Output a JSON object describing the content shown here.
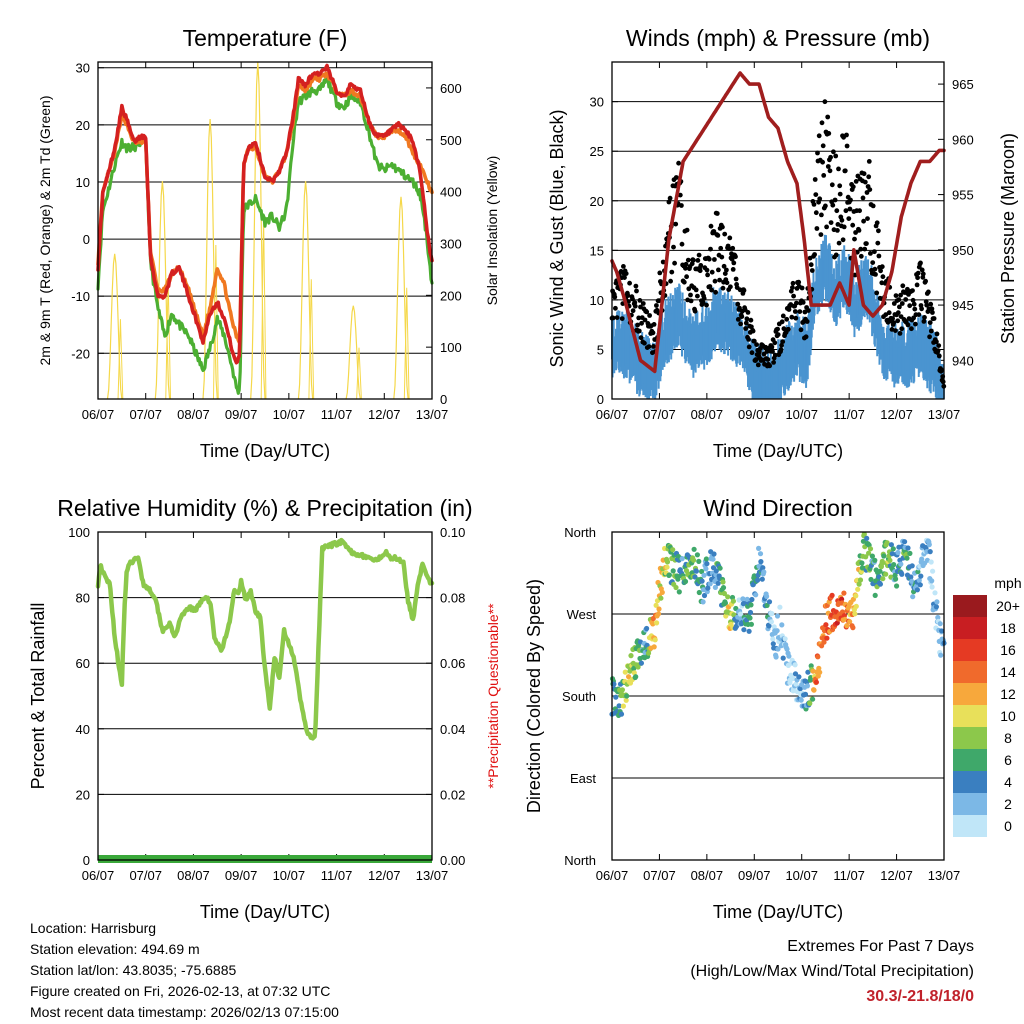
{
  "colors": {
    "temp_red": "#d42020",
    "temp_orange": "#f07820",
    "dew_green": "#4caf32",
    "solar_yellow": "#f5d84a",
    "gust_black": "#000000",
    "wind_blue": "#4a94d0",
    "pressure_maroon": "#a01e1e",
    "rh_green": "#8cc84b",
    "precip_green": "#3aa83a",
    "questionable_red": "#e01010",
    "extremes_red": "#c0222b"
  },
  "x_tick_labels": [
    "06/07",
    "07/07",
    "08/07",
    "09/07",
    "10/07",
    "11/07",
    "12/07",
    "13/07"
  ],
  "xlabel": "Time (Day/UTC)",
  "chart_data": [
    {
      "type": "line",
      "title": "Temperature (F)",
      "ylabel_left": "2m & 9m T (Red, Orange) & 2m Td (Green)",
      "ylabel_right": "Solar Insolation (Yellow)",
      "ylim_left": [
        -28,
        31
      ],
      "ylim_right": [
        0,
        650
      ],
      "yticks_left": [
        -20,
        -10,
        0,
        10,
        20,
        30
      ],
      "yticks_right": [
        0,
        100,
        200,
        300,
        400,
        500,
        600
      ],
      "gridlines_left": [
        -20,
        -10,
        0,
        10,
        20,
        30
      ],
      "series": [
        {
          "name": "2m T",
          "color": "#d42020",
          "x": [
            0,
            0.1,
            0.2,
            0.35,
            0.5,
            0.6,
            0.75,
            0.9,
            1.0,
            1.1,
            1.25,
            1.4,
            1.55,
            1.7,
            1.9,
            2.05,
            2.2,
            2.35,
            2.5,
            2.65,
            2.8,
            2.9,
            2.97,
            3.05,
            3.15,
            3.3,
            3.5,
            3.65,
            3.8,
            3.95,
            4.1,
            4.2,
            4.35,
            4.5,
            4.65,
            4.8,
            5.0,
            5.15,
            5.3,
            5.5,
            5.7,
            5.85,
            6.0,
            6.15,
            6.3,
            6.45,
            6.6,
            6.75,
            6.85,
            6.95,
            7.0
          ],
          "values": [
            -5,
            8,
            11,
            16,
            23,
            21,
            17,
            18,
            18,
            -3,
            -10,
            -10,
            -6,
            -5,
            -10,
            -14,
            -18,
            -13,
            -11,
            -14,
            -19,
            -22,
            -20,
            13,
            16,
            17,
            11,
            10,
            12,
            15,
            22,
            28,
            27,
            29,
            29,
            30,
            26,
            25,
            27,
            26,
            20,
            18,
            18,
            19,
            20,
            19,
            17,
            12,
            5,
            -2,
            -4
          ]
        },
        {
          "name": "9m T",
          "color": "#f07820",
          "x": [
            0,
            0.1,
            0.2,
            0.35,
            0.5,
            0.6,
            0.75,
            0.9,
            1.0,
            1.1,
            1.25,
            1.4,
            1.55,
            1.7,
            1.9,
            2.05,
            2.2,
            2.35,
            2.5,
            2.65,
            2.8,
            2.9,
            2.97,
            3.05,
            3.15,
            3.3,
            3.5,
            3.65,
            3.8,
            3.95,
            4.1,
            4.2,
            4.35,
            4.5,
            4.65,
            4.8,
            5.0,
            5.15,
            5.3,
            5.5,
            5.7,
            5.85,
            6.0,
            6.15,
            6.3,
            6.45,
            6.6,
            6.75,
            6.85,
            6.95,
            7.0
          ],
          "values": [
            -4,
            8,
            11,
            15,
            22,
            20,
            17,
            17,
            17,
            -2,
            -9,
            -9,
            -6,
            -5,
            -9,
            -13,
            -17,
            -12,
            -5,
            -8,
            -14,
            -17,
            -18,
            13,
            16,
            16,
            11,
            10,
            12,
            15,
            21,
            27,
            26,
            28,
            28,
            29,
            26,
            25,
            26,
            25,
            20,
            18,
            18,
            19,
            19,
            18,
            15,
            13,
            11,
            9,
            8
          ]
        },
        {
          "name": "2m Td",
          "color": "#4caf32",
          "x": [
            0,
            0.1,
            0.2,
            0.35,
            0.5,
            0.6,
            0.75,
            0.9,
            1.0,
            1.1,
            1.25,
            1.4,
            1.55,
            1.7,
            1.9,
            2.05,
            2.2,
            2.35,
            2.5,
            2.65,
            2.8,
            2.9,
            2.97,
            3.05,
            3.15,
            3.3,
            3.5,
            3.65,
            3.8,
            3.95,
            4.1,
            4.2,
            4.35,
            4.5,
            4.65,
            4.8,
            5.0,
            5.15,
            5.3,
            5.5,
            5.7,
            5.85,
            6.0,
            6.15,
            6.3,
            6.45,
            6.6,
            6.75,
            6.85,
            6.95,
            7.0
          ],
          "values": [
            -8,
            5,
            8,
            13,
            17,
            16,
            16,
            17,
            17,
            -4,
            -12,
            -17,
            -13,
            -15,
            -17,
            -20,
            -23,
            -19,
            -14,
            -17,
            -22,
            -26,
            -27,
            5,
            6,
            7,
            3,
            4,
            2,
            5,
            18,
            24,
            25,
            26,
            26,
            28,
            24,
            23,
            25,
            24,
            18,
            13,
            12,
            13,
            12,
            11,
            10,
            8,
            3,
            -4,
            -8
          ]
        },
        {
          "name": "Solar Insolation",
          "axis": "right",
          "color": "#f5d84a",
          "peaks": [
            {
              "x": 0.35,
              "v": 280
            },
            {
              "x": 1.35,
              "v": 420
            },
            {
              "x": 2.35,
              "v": 540
            },
            {
              "x": 3.35,
              "v": 650
            },
            {
              "x": 4.35,
              "v": 420
            },
            {
              "x": 5.35,
              "v": 180
            },
            {
              "x": 6.35,
              "v": 390
            }
          ]
        }
      ]
    },
    {
      "type": "scatter",
      "title": "Winds (mph) & Pressure (mb)",
      "ylabel_left": "Sonic Wind & Gust (Blue, Black)",
      "ylabel_right": "Station Pressure (Maroon)",
      "ylim_left": [
        0,
        34
      ],
      "ylim_right": [
        936.5,
        967
      ],
      "yticks_left": [
        0,
        5,
        10,
        15,
        20,
        25,
        30
      ],
      "yticks_right": [
        940,
        945,
        950,
        955,
        960,
        965
      ],
      "gridlines_left": [
        5,
        10,
        15,
        20,
        25,
        30
      ],
      "series": [
        {
          "name": "Sonic Wind",
          "color": "#4a94d0",
          "x": [
            0,
            0.3,
            0.6,
            0.9,
            1.1,
            1.4,
            1.7,
            2.0,
            2.2,
            2.5,
            2.8,
            3.0,
            3.3,
            3.6,
            3.9,
            4.1,
            4.3,
            4.5,
            4.7,
            4.9,
            5.1,
            5.4,
            5.7,
            5.9,
            6.2,
            6.5,
            6.8,
            7.0
          ],
          "values": [
            6,
            6,
            4,
            3,
            7,
            9,
            6,
            7,
            9,
            8,
            6,
            3,
            2,
            4,
            6,
            5,
            12,
            14,
            11,
            13,
            10,
            12,
            6,
            5,
            5,
            6,
            4,
            1
          ]
        },
        {
          "name": "Gust",
          "color": "#000000",
          "x": [
            0,
            0.3,
            0.6,
            0.9,
            1.1,
            1.4,
            1.7,
            2.0,
            2.2,
            2.5,
            2.8,
            3.0,
            3.3,
            3.6,
            3.9,
            4.1,
            4.3,
            4.5,
            4.7,
            4.9,
            5.1,
            5.4,
            5.7,
            5.9,
            6.2,
            6.5,
            6.8,
            7.0
          ],
          "values": [
            10,
            11,
            8,
            6,
            14,
            19,
            11,
            13,
            15,
            13,
            9,
            5,
            4,
            7,
            10,
            8,
            20,
            24,
            19,
            22,
            17,
            20,
            11,
            9,
            9,
            11,
            7,
            1
          ]
        },
        {
          "name": "Station Pressure",
          "axis": "right",
          "color": "#a01e1e",
          "x": [
            0,
            0.1,
            0.3,
            0.6,
            0.9,
            1.2,
            1.5,
            1.8,
            2.1,
            2.4,
            2.7,
            2.9,
            3.1,
            3.3,
            3.5,
            3.7,
            3.9,
            4.05,
            4.2,
            4.4,
            4.6,
            4.8,
            5.0,
            5.1,
            5.3,
            5.5,
            5.7,
            5.9,
            6.1,
            6.3,
            6.5,
            6.7,
            6.9,
            7.0
          ],
          "values": [
            949,
            948,
            945,
            940,
            939,
            951,
            958,
            960,
            962,
            964,
            966,
            965,
            965,
            962,
            961,
            958,
            956,
            951,
            945,
            945,
            945,
            947,
            945,
            950,
            945,
            944,
            945,
            948,
            953,
            956,
            958,
            958,
            959,
            959
          ]
        }
      ]
    },
    {
      "type": "line",
      "title": "Relative Humidity (%) & Precipitation (in)",
      "ylabel_left": "Percent & Total Rainfall",
      "ylabel_right": "**Precipitation Questionable**",
      "ylim_left": [
        0,
        100
      ],
      "ylim_right": [
        0,
        0.1
      ],
      "yticks_left": [
        0,
        20,
        40,
        60,
        80,
        100
      ],
      "yticks_right": [
        "0.00",
        "0.02",
        "0.04",
        "0.06",
        "0.08",
        "0.10"
      ],
      "gridlines_left": [
        20,
        40,
        60,
        80
      ],
      "series": [
        {
          "name": "Relative Humidity",
          "color": "#8cc84b",
          "x": [
            0,
            0.05,
            0.15,
            0.25,
            0.35,
            0.45,
            0.5,
            0.55,
            0.6,
            0.7,
            0.85,
            0.95,
            1.05,
            1.2,
            1.35,
            1.5,
            1.6,
            1.75,
            1.9,
            2.05,
            2.2,
            2.35,
            2.45,
            2.6,
            2.75,
            2.85,
            2.95,
            3.0,
            3.1,
            3.2,
            3.3,
            3.4,
            3.5,
            3.6,
            3.7,
            3.8,
            3.85,
            3.9,
            4.0,
            4.1,
            4.25,
            4.4,
            4.55,
            4.7,
            4.9,
            5.1,
            5.3,
            5.5,
            5.7,
            5.85,
            5.95,
            6.05,
            6.15,
            6.25,
            6.4,
            6.5,
            6.6,
            6.7,
            6.8,
            6.9,
            7.0
          ],
          "values": [
            84,
            90,
            86,
            84,
            68,
            58,
            54,
            75,
            88,
            91,
            92,
            84,
            83,
            80,
            70,
            72,
            68,
            74,
            77,
            76,
            80,
            79,
            67,
            64,
            72,
            82,
            81,
            85,
            79,
            82,
            76,
            74,
            58,
            46,
            62,
            55,
            63,
            70,
            66,
            62,
            48,
            38,
            37,
            95,
            96,
            97,
            94,
            93,
            92,
            91,
            93,
            94,
            92,
            92,
            91,
            79,
            73,
            84,
            90,
            86,
            84
          ]
        },
        {
          "name": "Total Rainfall",
          "axis": "right",
          "color": "#3aa83a",
          "x": [
            0,
            7.0
          ],
          "values": [
            0,
            0
          ]
        }
      ]
    },
    {
      "type": "scatter",
      "title": "Wind Direction",
      "ylabel": "Direction (Colored By Speed)",
      "y_categories": [
        "North",
        "East",
        "South",
        "West",
        "North"
      ],
      "legend_title": "mph",
      "legend_labels": [
        "20+",
        "18",
        "16",
        "14",
        "12",
        "10",
        "8",
        "6",
        "4",
        "2",
        "0"
      ],
      "legend_colors": [
        "#9a1a1e",
        "#c81e22",
        "#e53a23",
        "#f06a2c",
        "#f7a83c",
        "#e8e05a",
        "#8cc84b",
        "#3fa86a",
        "#3a7fc0",
        "#7cb8e6",
        "#c0e6f8"
      ],
      "series": [
        {
          "name": "Direction (deg)",
          "x": [
            0,
            0.2,
            0.35,
            0.5,
            0.7,
            0.9,
            1.0,
            1.15,
            1.3,
            1.5,
            1.7,
            1.9,
            2.1,
            2.3,
            2.5,
            2.7,
            2.9,
            3.1,
            3.3,
            3.45,
            3.55,
            3.7,
            3.85,
            4.0,
            4.15,
            4.3,
            4.5,
            4.7,
            4.9,
            5.1,
            5.3,
            5.5,
            5.6,
            5.8,
            6.0,
            6.2,
            6.35,
            6.5,
            6.65,
            6.8,
            7.0
          ],
          "values": [
            180,
            175,
            200,
            220,
            240,
            250,
            300,
            330,
            320,
            310,
            330,
            300,
            325,
            300,
            270,
            270,
            265,
            330,
            270,
            240,
            260,
            210,
            200,
            175,
            190,
            200,
            260,
            275,
            275,
            275,
            345,
            315,
            305,
            335,
            320,
            340,
            300,
            315,
            345,
            280,
            220
          ],
          "speeds": [
            4,
            6,
            10,
            8,
            4,
            12,
            10,
            9,
            6,
            5,
            7,
            4,
            3,
            6,
            10,
            2,
            5,
            4,
            3,
            2,
            2,
            1,
            1,
            3,
            4,
            14,
            13,
            16,
            14,
            12,
            7,
            5,
            5,
            8,
            4,
            5,
            4,
            3,
            2,
            2,
            1
          ]
        }
      ]
    }
  ],
  "info": {
    "location": "Location: Harrisburg",
    "elevation": "Station elevation: 494.69 m",
    "latlon": "Station lat/lon: 43.8035; -75.6885",
    "created": "Figure created on Fri, 2026-02-13, at 07:32 UTC",
    "timestamp": "Most recent data timestamp: 2026/02/13 07:15:00"
  },
  "extremes": {
    "title": "Extremes For Past 7 Days",
    "subtitle": "(High/Low/Max Wind/Total Precipitation)",
    "value": "30.3/-21.8/18/0"
  }
}
